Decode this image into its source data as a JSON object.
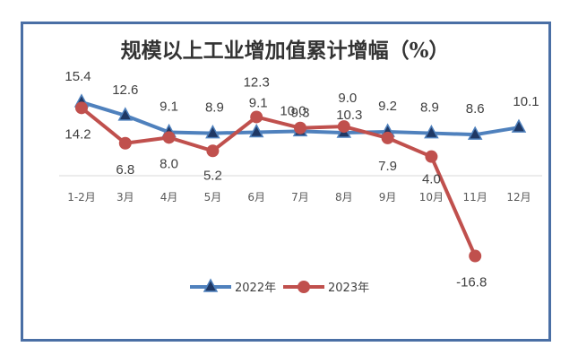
{
  "chart_data": {
    "type": "line",
    "title": "规模以上工业增加值累计增幅（%）",
    "categories": [
      "1-2月",
      "3月",
      "4月",
      "5月",
      "6月",
      "7月",
      "8月",
      "9月",
      "10月",
      "11月",
      "12月"
    ],
    "series": [
      {
        "name": "2022年",
        "color": "#4f81bd",
        "marker": "triangle",
        "values": [
          15.4,
          12.6,
          9.1,
          8.9,
          9.1,
          9.3,
          9.0,
          9.2,
          8.9,
          8.6,
          10.1
        ],
        "labels": [
          "15.4",
          "12.6",
          "9.1",
          "8.9",
          "9.1",
          "9.3",
          "9.0",
          "9.2",
          "8.9",
          "8.6",
          "10.1"
        ]
      },
      {
        "name": "2023年",
        "color": "#c0504d",
        "marker": "circle",
        "values": [
          14.2,
          6.8,
          8.0,
          5.2,
          12.3,
          10.0,
          10.3,
          7.9,
          4.0,
          -16.8,
          null
        ],
        "labels": [
          "14.2",
          "6.8",
          "8.0",
          "5.2",
          "12.3",
          "10.0",
          "10.3",
          "7.9",
          "4.0",
          "-16.8",
          null
        ]
      }
    ],
    "ylim": [
      -20,
      20
    ],
    "grid": false,
    "legend": "bottom"
  }
}
